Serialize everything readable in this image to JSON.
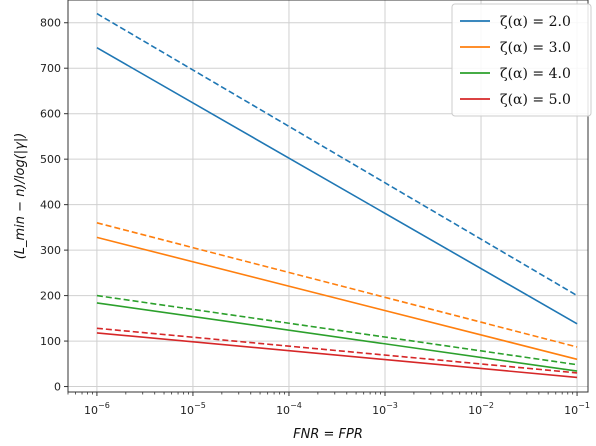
{
  "chart_data": {
    "type": "line",
    "xscale": "log",
    "x_ticks": [
      1e-06,
      1e-05,
      0.0001,
      0.001,
      0.01,
      0.1
    ],
    "x_tick_labels": [
      {
        "base": "10",
        "exp": "−6"
      },
      {
        "base": "10",
        "exp": "−5"
      },
      {
        "base": "10",
        "exp": "−4"
      },
      {
        "base": "10",
        "exp": "−3"
      },
      {
        "base": "10",
        "exp": "−2"
      },
      {
        "base": "10",
        "exp": "−1"
      }
    ],
    "xlim": [
      5e-07,
      0.13
    ],
    "y_ticks": [
      0,
      100,
      200,
      300,
      400,
      500,
      600,
      700,
      800
    ],
    "y_tick_labels": [
      "0",
      "100",
      "200",
      "300",
      "400",
      "500",
      "600",
      "700",
      "800"
    ],
    "ylim": [
      -12,
      850
    ],
    "xlabel": "FNR = FPR",
    "ylabel": "(L_min − n)/log(|γ|)",
    "grid": true,
    "legend_position": "top-right",
    "series": [
      {
        "name": "ζ(α) = 2.0",
        "color": "#1f77b4",
        "style": "solid",
        "x": [
          1e-06,
          0.1
        ],
        "y": [
          745,
          138
        ]
      },
      {
        "name": "ζ(α) = 2.0",
        "color": "#1f77b4",
        "style": "dashed",
        "x": [
          1e-06,
          0.1
        ],
        "y": [
          820,
          200
        ]
      },
      {
        "name": "ζ(α) = 3.0",
        "color": "#ff7f0e",
        "style": "solid",
        "x": [
          1e-06,
          0.1
        ],
        "y": [
          328,
          60
        ]
      },
      {
        "name": "ζ(α) = 3.0",
        "color": "#ff7f0e",
        "style": "dashed",
        "x": [
          1e-06,
          0.1
        ],
        "y": [
          360,
          87
        ]
      },
      {
        "name": "ζ(α) = 4.0",
        "color": "#2ca02c",
        "style": "solid",
        "x": [
          1e-06,
          0.1
        ],
        "y": [
          184,
          34
        ]
      },
      {
        "name": "ζ(α) = 4.0",
        "color": "#2ca02c",
        "style": "dashed",
        "x": [
          1e-06,
          0.1
        ],
        "y": [
          200,
          48
        ]
      },
      {
        "name": "ζ(α) = 5.0",
        "color": "#d62728",
        "style": "solid",
        "x": [
          1e-06,
          0.1
        ],
        "y": [
          118,
          20
        ]
      },
      {
        "name": "ζ(α) = 5.0",
        "color": "#d62728",
        "style": "dashed",
        "x": [
          1e-06,
          0.1
        ],
        "y": [
          128,
          30
        ]
      }
    ],
    "legend": [
      {
        "label": "ζ(α) = 2.0",
        "color": "#1f77b4"
      },
      {
        "label": "ζ(α) = 3.0",
        "color": "#ff7f0e"
      },
      {
        "label": "ζ(α) = 4.0",
        "color": "#2ca02c"
      },
      {
        "label": "ζ(α) = 5.0",
        "color": "#d62728"
      }
    ]
  }
}
